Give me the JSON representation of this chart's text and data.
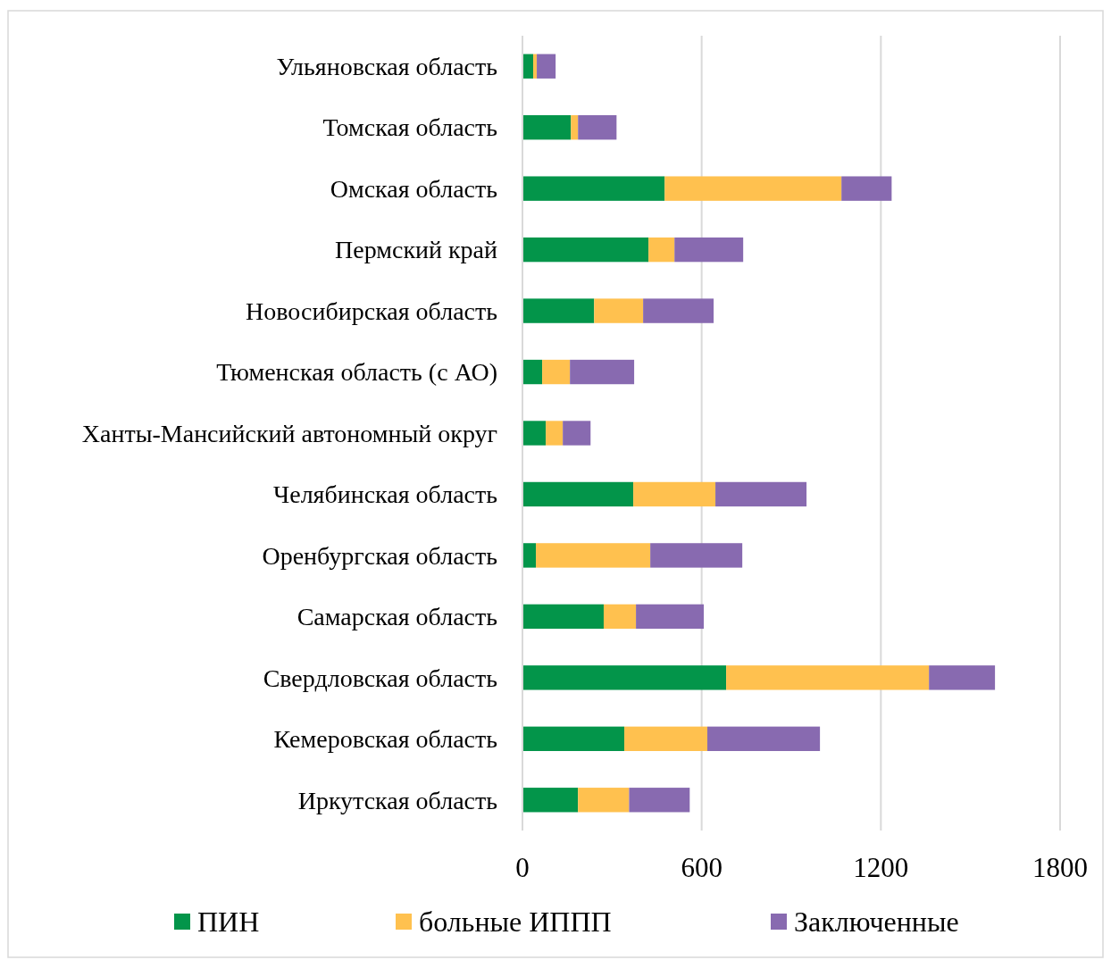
{
  "chart_data": {
    "type": "bar",
    "orientation": "horizontal",
    "stacked": true,
    "categories": [
      "Ульяновская область",
      "Томская область",
      "Омская область",
      "Пермский край",
      "Новосибирская область",
      "Тюменская область (с АО)",
      "Ханты-Мансийский автономный округ",
      "Челябинская область",
      "Оренбургская область",
      "Самарская область",
      "Свердловская область",
      "Кемеровская область",
      "Иркутская область"
    ],
    "series": [
      {
        "name": "ПИН",
        "color": "#03954a",
        "values": [
          36,
          162,
          476,
          422,
          240,
          66,
          78,
          371,
          45,
          272,
          682,
          341,
          186
        ]
      },
      {
        "name": "больные ИППП",
        "color": "#ffc14f",
        "values": [
          12,
          24,
          592,
          87,
          164,
          93,
          57,
          275,
          383,
          108,
          679,
          278,
          171
        ]
      },
      {
        "name": "Заключенные",
        "color": "#886ab0",
        "values": [
          63,
          129,
          168,
          230,
          236,
          215,
          93,
          305,
          308,
          227,
          221,
          377,
          203
        ]
      }
    ],
    "xlim": [
      0,
      1800
    ],
    "xticks": [
      0,
      600,
      1200,
      1800
    ],
    "grid": "x",
    "legend": "bottom"
  }
}
